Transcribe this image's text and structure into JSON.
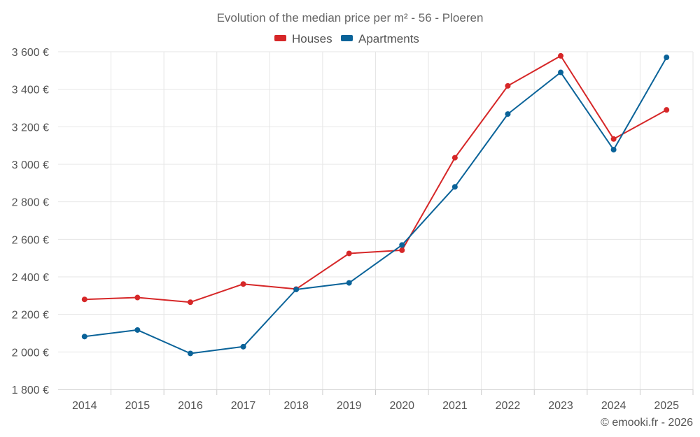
{
  "chart_data": {
    "type": "line",
    "title": "Evolution of the median price per m² - 56 - Ploeren",
    "categories": [
      "2014",
      "2015",
      "2016",
      "2017",
      "2018",
      "2019",
      "2020",
      "2021",
      "2022",
      "2023",
      "2024",
      "2025"
    ],
    "series": [
      {
        "name": "Houses",
        "color": "#d62728",
        "values": [
          2280,
          2290,
          2265,
          2362,
          2335,
          2525,
          2542,
          3035,
          3418,
          3578,
          3135,
          3290
        ]
      },
      {
        "name": "Apartments",
        "color": "#0a6399",
        "values": [
          2082,
          2117,
          1992,
          2028,
          2333,
          2368,
          2570,
          2880,
          3268,
          3490,
          3078,
          3570
        ]
      }
    ],
    "ylim": [
      1800,
      3600
    ],
    "yticks": [
      1800,
      2000,
      2200,
      2400,
      2600,
      2800,
      3000,
      3200,
      3400,
      3600
    ],
    "ytick_labels": [
      "1 800 €",
      "2 000 €",
      "2 200 €",
      "2 400 €",
      "2 600 €",
      "2 800 €",
      "3 000 €",
      "3 200 €",
      "3 400 €",
      "3 600 €"
    ],
    "xlabel": "",
    "ylabel": "",
    "legend_position": "top-center",
    "grid": true,
    "credit": "© emooki.fr - 2026"
  }
}
